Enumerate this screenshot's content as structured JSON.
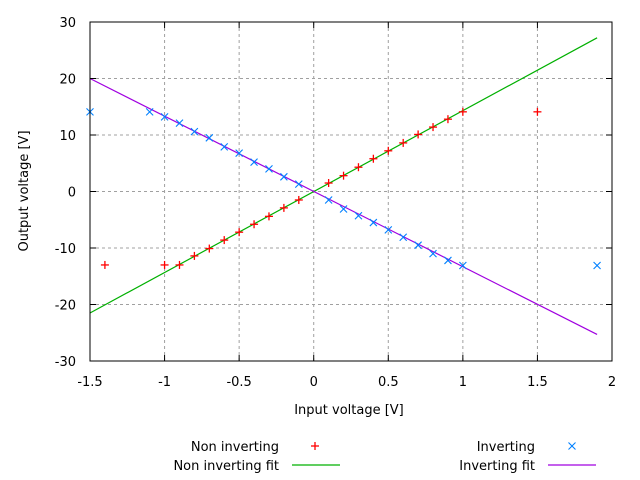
{
  "chart_data": {
    "type": "scatter",
    "xlabel": "Input voltage [V]",
    "ylabel": "Output voltage [V]",
    "xlim": [
      -1.5,
      2
    ],
    "ylim": [
      -30,
      30
    ],
    "xticks": [
      -1.5,
      -1,
      -0.5,
      0,
      0.5,
      1,
      1.5,
      2
    ],
    "xtick_labels": [
      "-1.5",
      "-1",
      "-0.5",
      "0",
      "0.5",
      "1",
      "1.5",
      "2"
    ],
    "yticks": [
      -30,
      -20,
      -10,
      0,
      10,
      20,
      30
    ],
    "ytick_labels": [
      "-30",
      "-20",
      "-10",
      "0",
      "10",
      "20",
      "30"
    ],
    "grid": true,
    "legend_placement": "bottom",
    "series": [
      {
        "name": "Non inverting",
        "kind": "points",
        "marker": "plus",
        "color": "#ff0000",
        "x": [
          -1.4,
          -1.0,
          -0.9,
          -0.8,
          -0.7,
          -0.6,
          -0.5,
          -0.4,
          -0.3,
          -0.2,
          -0.1,
          0.1,
          0.2,
          0.3,
          0.4,
          0.5,
          0.6,
          0.7,
          0.8,
          0.9,
          1.0,
          1.5
        ],
        "y": [
          -13,
          -13,
          -13,
          -11.4,
          -10.1,
          -8.6,
          -7.2,
          -5.8,
          -4.4,
          -2.9,
          -1.5,
          1.5,
          2.8,
          4.3,
          5.8,
          7.2,
          8.6,
          10.1,
          11.4,
          12.8,
          14.1,
          14.1
        ]
      },
      {
        "name": "Non inverting fit",
        "kind": "line",
        "color": "#00b000",
        "x": [
          -1.5,
          1.9
        ],
        "y": [
          -21.5,
          27.2
        ]
      },
      {
        "name": "Inverting",
        "kind": "points",
        "marker": "cross",
        "color": "#0080ff",
        "x": [
          -1.5,
          -1.1,
          -1.0,
          -0.9,
          -0.8,
          -0.7,
          -0.6,
          -0.5,
          -0.4,
          -0.3,
          -0.2,
          -0.1,
          0.1,
          0.2,
          0.3,
          0.4,
          0.5,
          0.6,
          0.7,
          0.8,
          0.9,
          1.0,
          1.9
        ],
        "y": [
          14.1,
          14.1,
          13.2,
          12.1,
          10.6,
          9.5,
          7.9,
          6.8,
          5.2,
          4.0,
          2.6,
          1.3,
          -1.5,
          -3.1,
          -4.3,
          -5.5,
          -6.8,
          -8.1,
          -9.5,
          -11.0,
          -12.2,
          -13.1,
          -13.1
        ]
      },
      {
        "name": "Inverting fit",
        "kind": "line",
        "color": "#a000e0",
        "x": [
          -1.5,
          1.9
        ],
        "y": [
          20.0,
          -25.3
        ]
      }
    ]
  }
}
